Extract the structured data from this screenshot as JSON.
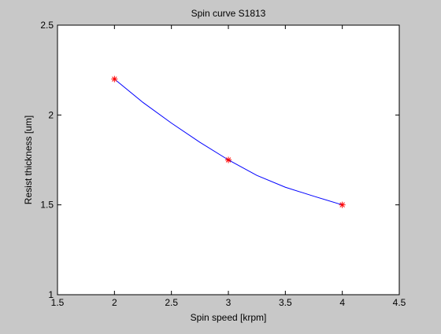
{
  "chart_data": {
    "type": "line",
    "title": "Spin curve S1813",
    "xlabel": "Spin speed [krpm]",
    "ylabel": "Resist thickness [um]",
    "xlim": [
      1.5,
      4.5
    ],
    "ylim": [
      1,
      2.5
    ],
    "xticks": [
      1.5,
      2,
      2.5,
      3,
      3.5,
      4,
      4.5
    ],
    "yticks": [
      1,
      1.5,
      2,
      2.5
    ],
    "xtick_labels": [
      "1.5",
      "2",
      "2.5",
      "3",
      "3.5",
      "4",
      "4.5"
    ],
    "ytick_labels": [
      "1",
      "1.5",
      "2",
      "2.5"
    ],
    "grid": false,
    "legend": "none",
    "series": [
      {
        "role": "measured",
        "marker": "*",
        "color": "#ff0000",
        "x": [
          2,
          3,
          4
        ],
        "y": [
          2.2,
          1.75,
          1.5
        ]
      },
      {
        "role": "fit",
        "style": "line",
        "color": "#0000ff",
        "x": [
          2,
          2.25,
          2.5,
          2.75,
          3,
          3.25,
          3.5,
          3.75,
          4
        ],
        "y": [
          2.2,
          2.07,
          1.955,
          1.848,
          1.75,
          1.664,
          1.598,
          1.548,
          1.5
        ]
      }
    ],
    "colors": {
      "figure_bg": "#c8c8c8",
      "axes_bg": "#ffffff",
      "axes_edge": "#000000"
    }
  }
}
